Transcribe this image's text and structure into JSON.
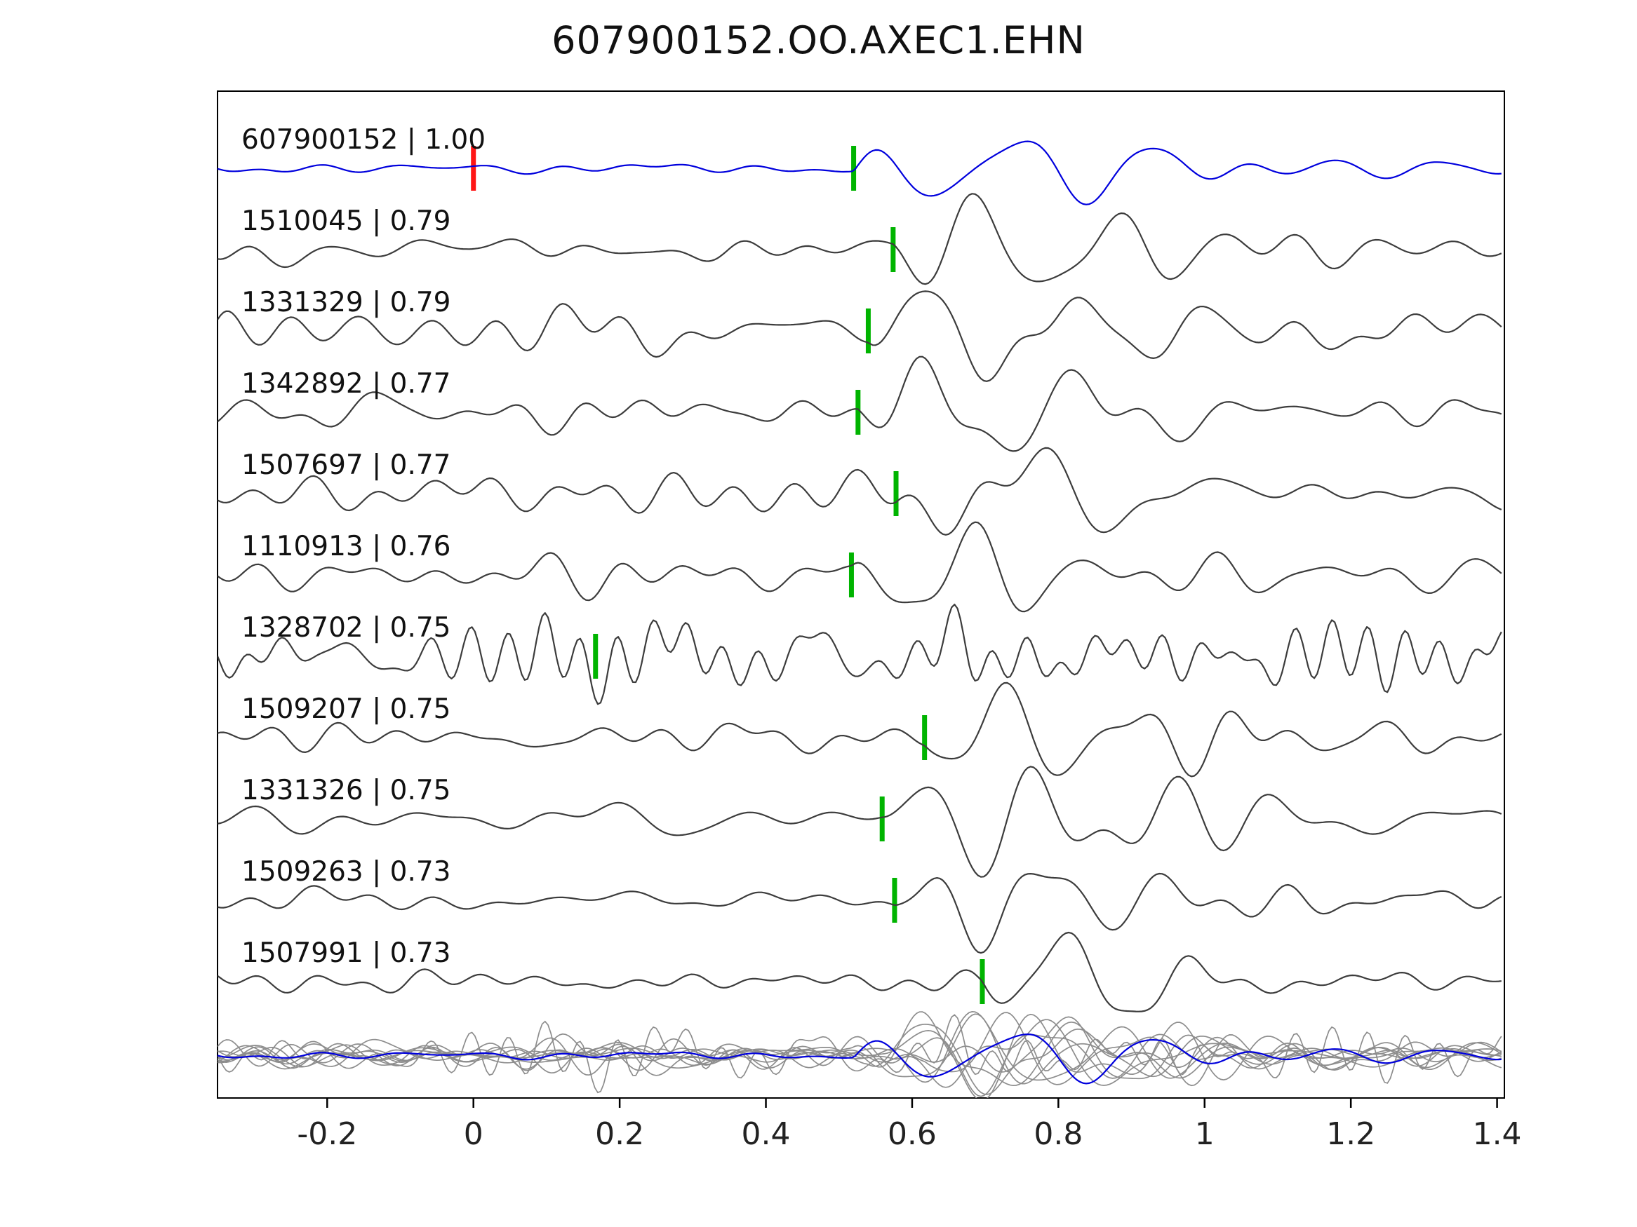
{
  "title": "607900152.OO.AXEC1.EHN",
  "chart_data": {
    "type": "line",
    "title": "607900152.OO.AXEC1.EHN",
    "xlabel": "",
    "ylabel": "",
    "xlim": [
      -0.35,
      1.41
    ],
    "x_ticks": [
      -0.2,
      0,
      0.2,
      0.4,
      0.6,
      0.8,
      1,
      1.2,
      1.4
    ],
    "x_tick_labels": [
      "-0.2",
      "0",
      "0.2",
      "0.4",
      "0.6",
      "0.8",
      "1",
      "1.2",
      "1.4"
    ],
    "grid": false,
    "legend": "none",
    "colors": {
      "template_trace": "#0000dd",
      "match_trace": "#3c3c3c",
      "pick_marker": "#00b400",
      "template_pick_marker": "#ff1616",
      "overlay_trace": "#8d8d8d",
      "axis": "#000000",
      "label_text": "#111111"
    },
    "traces": [
      {
        "id": "607900152",
        "corr": "1.00",
        "label": "607900152 | 1.00",
        "pick": 0.52,
        "is_template": true,
        "template_pick": 0.0,
        "noise_amp": 4,
        "burst_amp": 55
      },
      {
        "id": "1510045",
        "corr": "0.79",
        "label": "1510045 | 0.79",
        "pick": 0.574,
        "noise_amp": 8,
        "burst_amp": 62
      },
      {
        "id": "1331329",
        "corr": "0.79",
        "label": "1331329 | 0.79",
        "pick": 0.54,
        "noise_amp": 13,
        "burst_amp": 58
      },
      {
        "id": "1342892",
        "corr": "0.77",
        "label": "1342892 | 0.77",
        "pick": 0.526,
        "noise_amp": 11,
        "burst_amp": 58
      },
      {
        "id": "1507697",
        "corr": "0.77",
        "label": "1507697 | 0.77",
        "pick": 0.578,
        "noise_amp": 11,
        "burst_amp": 55
      },
      {
        "id": "1110913",
        "corr": "0.76",
        "label": "1110913 | 0.76",
        "pick": 0.517,
        "noise_amp": 9,
        "burst_amp": 55
      },
      {
        "id": "1328702",
        "corr": "0.75",
        "label": "1328702 | 0.75",
        "pick": 0.167,
        "noise_amp": 20,
        "burst_amp": 28,
        "rough": 1.8
      },
      {
        "id": "1509207",
        "corr": "0.75",
        "label": "1509207 | 0.75",
        "pick": 0.617,
        "noise_amp": 10,
        "burst_amp": 58
      },
      {
        "id": "1331326",
        "corr": "0.75",
        "label": "1331326 | 0.75",
        "pick": 0.559,
        "noise_amp": 13,
        "burst_amp": 55
      },
      {
        "id": "1509263",
        "corr": "0.73",
        "label": "1509263 | 0.73",
        "pick": 0.576,
        "noise_amp": 9,
        "burst_amp": 55
      },
      {
        "id": "1507991",
        "corr": "0.73",
        "label": "1507991 | 0.73",
        "pick": 0.696,
        "noise_amp": 7,
        "burst_amp": 45
      }
    ],
    "overlay_row": {
      "description": "all matched traces overlaid in gray with blue template on top",
      "scale": 0.78
    }
  }
}
